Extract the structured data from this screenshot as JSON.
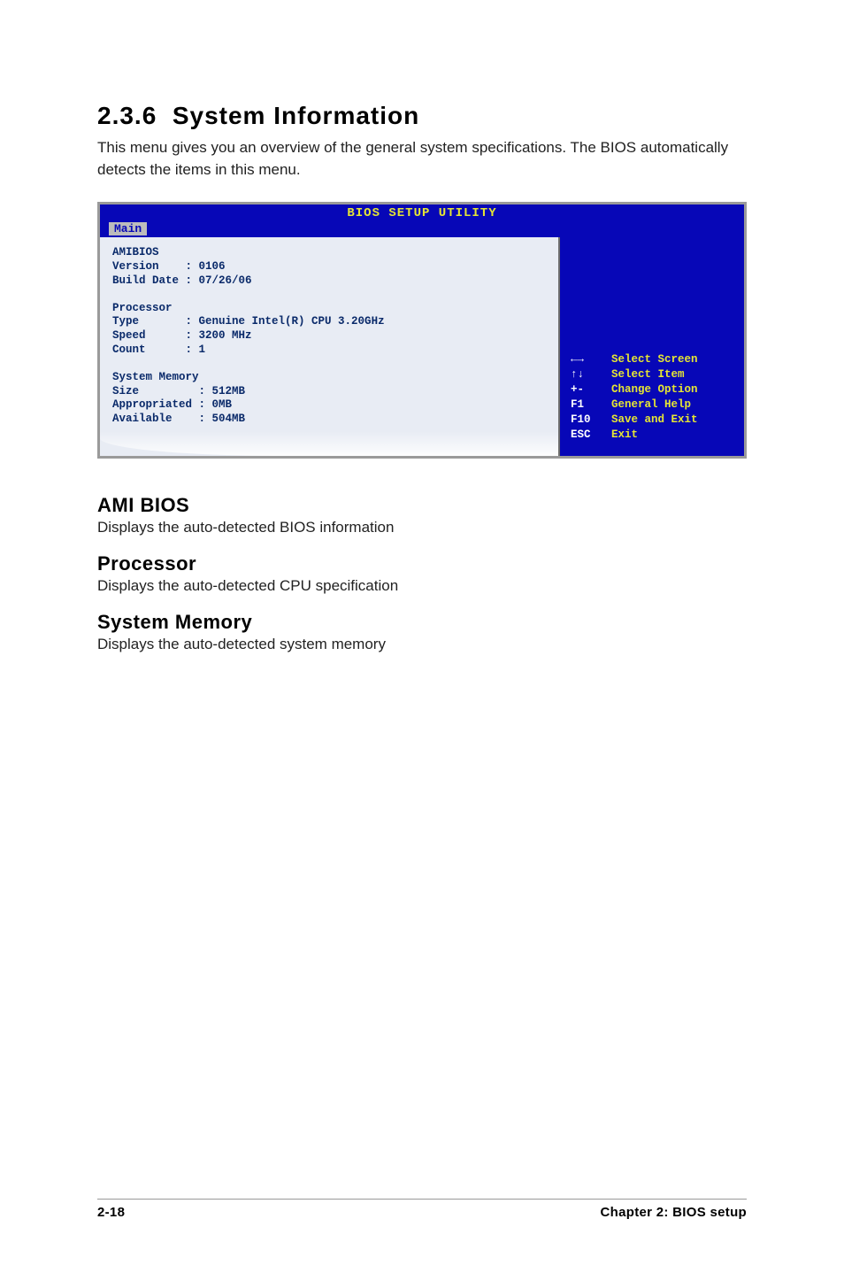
{
  "heading": {
    "number": "2.3.6",
    "title": "System Information"
  },
  "intro": "This menu gives you an overview of the general system specifications. The BIOS automatically detects the items in this menu.",
  "bios": {
    "title": "BIOS SETUP UTILITY",
    "tab": "Main",
    "left": {
      "amibios_label": "AMIBIOS",
      "version_label": "Version",
      "version_value": "0106",
      "build_label": "Build Date",
      "build_value": "07/26/06",
      "processor_label": "Processor",
      "type_label": "Type",
      "type_value": "Genuine Intel(R) CPU 3.20GHz",
      "speed_label": "Speed",
      "speed_value": "3200 MHz",
      "count_label": "Count",
      "count_value": "1",
      "sysmem_label": "System Memory",
      "size_label": "Size",
      "size_value": "512MB",
      "appropriated_label": "Appropriated",
      "appropriated_value": "0MB",
      "available_label": "Available",
      "available_value": "504MB"
    },
    "help": [
      {
        "key": "←→",
        "text": "Select Screen"
      },
      {
        "key": "↑↓",
        "text": "Select Item"
      },
      {
        "key": "+-",
        "text": "Change Option"
      },
      {
        "key": "F1",
        "text": "General Help"
      },
      {
        "key": "F10",
        "text": "Save and Exit"
      },
      {
        "key": "ESC",
        "text": "Exit"
      }
    ]
  },
  "subs": {
    "ami_bios_heading": "AMI BIOS",
    "ami_bios_body": "Displays the auto-detected BIOS information",
    "processor_heading": "Processor",
    "processor_body": "Displays the auto-detected CPU specification",
    "sysmem_heading": "System Memory",
    "sysmem_body": "Displays the auto-detected system memory"
  },
  "footer": {
    "page": "2-18",
    "chapter": "Chapter 2: BIOS setup"
  },
  "colors": {
    "bios_bg": "#0707b7",
    "bios_panel": "#e8ecf4",
    "bios_key": "#ffffff",
    "bios_accent": "#e5e534",
    "bios_text": "#0a2a6a"
  }
}
